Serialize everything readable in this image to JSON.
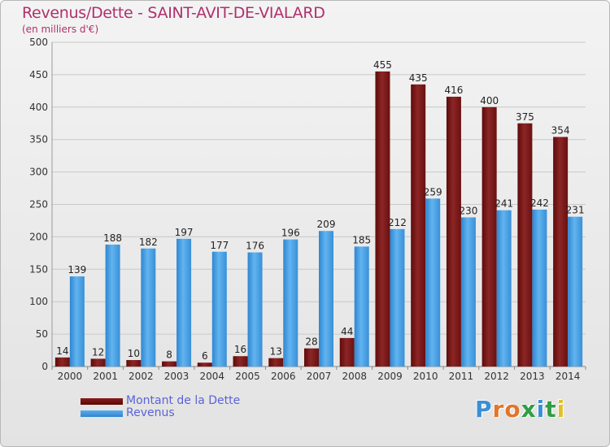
{
  "header": {
    "title": "Revenus/Dette - SAINT-AVIT-DE-VIALARD",
    "subtitle": "(en milliers d'€)"
  },
  "colors": {
    "dette": "#6e1010",
    "dette_light": "#8f2424",
    "revenus": "#3b92dc",
    "revenus_light": "#5aaeee",
    "grid": "#c8c8c8",
    "axis_text": "#333333"
  },
  "legend": {
    "items": [
      {
        "key": "dette",
        "label": "Montant de la Dette"
      },
      {
        "key": "revenus",
        "label": "Revenus"
      }
    ]
  },
  "logo": {
    "letters": [
      {
        "ch": "P",
        "color": "#3a8fd6"
      },
      {
        "ch": "r",
        "color": "#e0762a"
      },
      {
        "ch": "o",
        "color": "#e0762a"
      },
      {
        "ch": "x",
        "color": "#2f9e44"
      },
      {
        "ch": "i",
        "color": "#3a8fd6"
      },
      {
        "ch": "t",
        "color": "#2f9e44"
      },
      {
        "ch": "i",
        "color": "#e0c02a"
      }
    ]
  },
  "chart_data": {
    "type": "bar",
    "title": "Revenus/Dette - SAINT-AVIT-DE-VIALARD",
    "subtitle": "(en milliers d'€)",
    "categories": [
      "2000",
      "2001",
      "2002",
      "2003",
      "2004",
      "2005",
      "2006",
      "2007",
      "2008",
      "2009",
      "2010",
      "2011",
      "2012",
      "2013",
      "2014"
    ],
    "series": [
      {
        "name": "Montant de la Dette",
        "key": "dette",
        "values": [
          14,
          12,
          10,
          8,
          6,
          16,
          13,
          28,
          44,
          455,
          435,
          416,
          400,
          375,
          354
        ]
      },
      {
        "name": "Revenus",
        "key": "revenus",
        "values": [
          139,
          188,
          182,
          197,
          177,
          176,
          196,
          209,
          185,
          212,
          259,
          230,
          241,
          242,
          231
        ]
      }
    ],
    "ylim": [
      0,
      500
    ],
    "yticks": [
      0,
      50,
      100,
      150,
      200,
      250,
      300,
      350,
      400,
      450,
      500
    ],
    "grid": true,
    "legend_position": "bottom-left"
  }
}
